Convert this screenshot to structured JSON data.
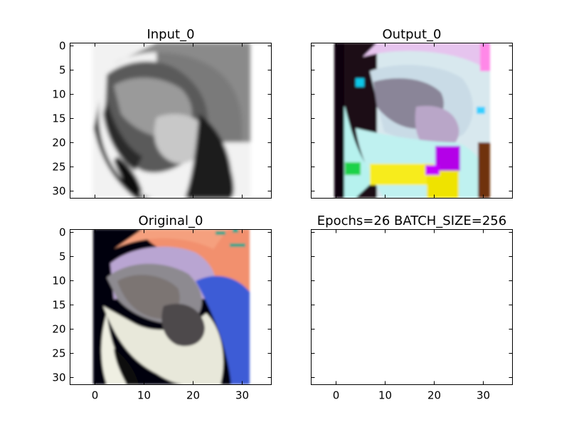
{
  "figure": {
    "width": 800,
    "height": 600,
    "background": "#ffffff"
  },
  "chart_data": [
    {
      "type": "image",
      "title": "Input_0",
      "xlim": [
        -5,
        36
      ],
      "ylim": [
        31.5,
        -0.5
      ],
      "x_ticks": [
        0,
        10,
        20,
        30
      ],
      "y_ticks": [
        0,
        5,
        10,
        15,
        20,
        25,
        30
      ],
      "show_x_tick_labels": false,
      "show_y_tick_labels": true,
      "image": {
        "description": "grayscale parrot head (32x32)",
        "extent": [
          -0.5,
          31.5,
          31.5,
          -0.5
        ],
        "colormap": "grayscale"
      }
    },
    {
      "type": "image",
      "title": "Output_0",
      "xlim": [
        -5,
        36
      ],
      "ylim": [
        31.5,
        -0.5
      ],
      "x_ticks": [
        0,
        10,
        20,
        30
      ],
      "y_ticks": [
        0,
        5,
        10,
        15,
        20,
        25,
        30
      ],
      "show_x_tick_labels": false,
      "show_y_tick_labels": false,
      "image": {
        "description": "colorized parrot head with pastel cyan/pink tones and yellow/magenta artifacts (32x32)",
        "extent": [
          -0.5,
          31.5,
          31.5,
          -0.5
        ],
        "colormap": "rgb"
      }
    },
    {
      "type": "image",
      "title": "Original_0",
      "xlim": [
        -5,
        36
      ],
      "ylim": [
        31.5,
        -0.5
      ],
      "x_ticks": [
        0,
        10,
        20,
        30
      ],
      "y_ticks": [
        0,
        5,
        10,
        15,
        20,
        25,
        30
      ],
      "show_x_tick_labels": true,
      "show_y_tick_labels": true,
      "image": {
        "description": "original color parrot head: orange/pink background, blue wing, white face, black background (32x32)",
        "extent": [
          -0.5,
          31.5,
          31.5,
          -0.5
        ],
        "colormap": "rgb"
      }
    },
    {
      "type": "empty",
      "title": "Epochs=26 BATCH_SIZE=256",
      "xlim": [
        -5,
        36
      ],
      "ylim": [
        31.5,
        -0.5
      ],
      "x_ticks": [
        0,
        10,
        20,
        30
      ],
      "y_ticks": [
        0,
        5,
        10,
        15,
        20,
        25,
        30
      ],
      "show_x_tick_labels": true,
      "show_y_tick_labels": false
    }
  ],
  "colors": {
    "gray_dark": "#1a1a1a",
    "gray_mid": "#8c8c8c",
    "gray_light": "#d9d9d9",
    "orange": "#f2906e",
    "blue": "#3d5bd6",
    "purple": "#c4a7d9",
    "teal": "#0fa38a",
    "cyan_pastel": "#bfeeee",
    "pink_pastel": "#f4b8f0",
    "yellow": "#f5ee00",
    "magenta": "#b000e6",
    "black_bg": "#05050f"
  }
}
